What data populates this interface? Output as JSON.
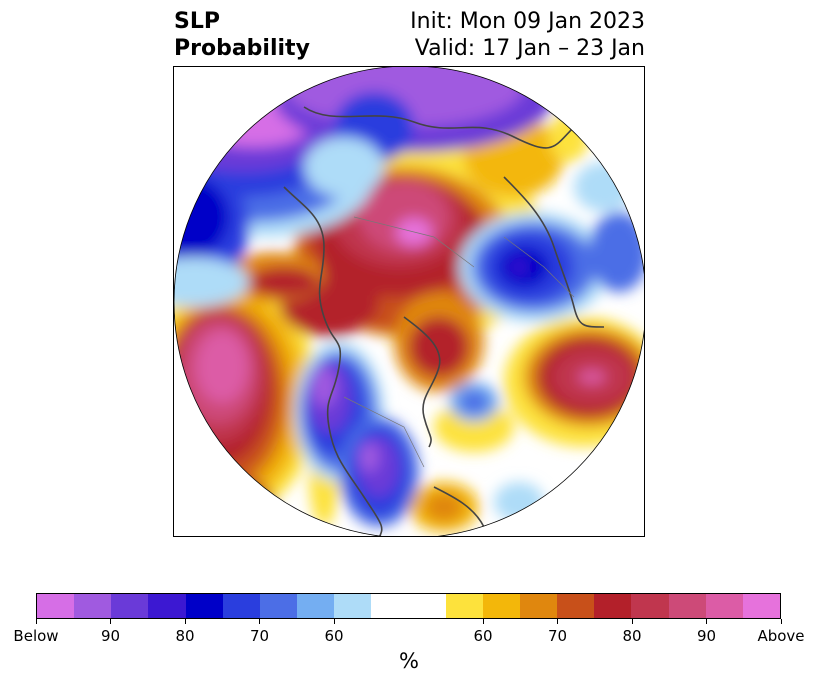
{
  "title": {
    "left_line1": "SLP",
    "left_line2": "Probability",
    "right_line1": "Init: Mon 09 Jan 2023",
    "right_line2": "Valid: 17 Jan – 23 Jan"
  },
  "colorbar": {
    "below_colors": [
      "#d66ee6",
      "#a05ae0",
      "#6a3ad8",
      "#3c18d2",
      "#0000c8",
      "#2a3ede",
      "#4c6ee6",
      "#74aef2",
      "#aedcf8"
    ],
    "neutral_color": "#ffffff",
    "above_colors": [
      "#fde23c",
      "#f3b70a",
      "#e0870e",
      "#c8501a",
      "#b3202a",
      "#c0364e",
      "#cd4a78",
      "#dc5ca6",
      "#e672dc"
    ],
    "tick_labels": [
      "Below",
      "90",
      "80",
      "70",
      "60",
      "60",
      "70",
      "80",
      "90",
      "Above"
    ],
    "unit_label": "%"
  }
}
